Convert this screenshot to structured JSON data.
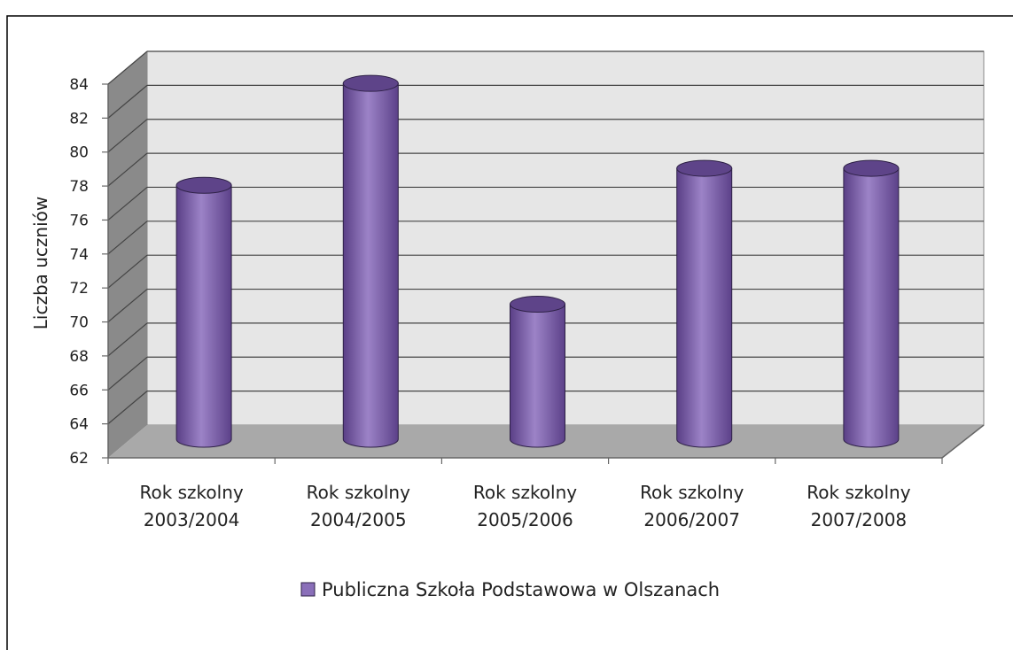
{
  "chart_data": {
    "type": "bar",
    "style": "3d-cylinder",
    "categories": [
      [
        "Rok szkolny",
        "2003/2004"
      ],
      [
        "Rok szkolny",
        "2004/2005"
      ],
      [
        "Rok szkolny",
        "2005/2006"
      ],
      [
        "Rok szkolny",
        "2006/2007"
      ],
      [
        "Rok szkolny",
        "2007/2008"
      ]
    ],
    "series": [
      {
        "name": "Publiczna Szkoła Podstawowa w Olszanach",
        "values": [
          77,
          83,
          70,
          78,
          78
        ]
      }
    ],
    "title": "",
    "xlabel": "",
    "ylabel": "Liczba uczniów",
    "ylim": [
      62,
      84
    ],
    "yticks": [
      62,
      64,
      66,
      68,
      70,
      72,
      74,
      76,
      78,
      80,
      82,
      84
    ],
    "grid": true,
    "legend": "bottom",
    "colors": {
      "bar_top": "#5e4489",
      "bar_mid": "#9a80c5",
      "bar_dark": "#54397d",
      "wall": "#e6e6e6",
      "side_wall": "#8a8a8a",
      "floor": "#a9a9a9",
      "grid": "#444444",
      "outline": "#2e2146"
    }
  }
}
